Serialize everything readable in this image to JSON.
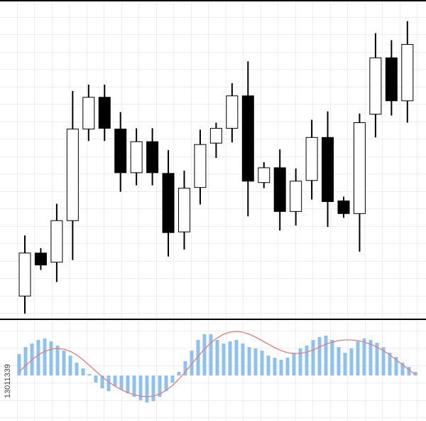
{
  "watermark": "13011339",
  "chart_data": [
    {
      "type": "candlestick",
      "ylim": [
        0,
        450
      ],
      "grid": true,
      "up_color": "#ffffff",
      "down_color": "#000000",
      "open": [
        32,
        93,
        80,
        139,
        269,
        314,
        269,
        207,
        251,
        206,
        123,
        186,
        249,
        270,
        316,
        193,
        214,
        152,
        196,
        257,
        167,
        149,
        290,
        370,
        309
      ],
      "close": [
        93,
        76,
        139,
        269,
        314,
        270,
        207,
        251,
        207,
        122,
        185,
        247,
        270,
        316,
        195,
        214,
        152,
        195,
        257,
        166,
        149,
        278,
        370,
        309,
        389
      ],
      "high": [
        118,
        100,
        163,
        323,
        332,
        332,
        293,
        270,
        270,
        239,
        210,
        268,
        278,
        334,
        365,
        222,
        240,
        213,
        282,
        294,
        173,
        291,
        405,
        395,
        422
      ],
      "low": [
        7,
        69,
        52,
        83,
        252,
        252,
        180,
        189,
        189,
        88,
        98,
        162,
        228,
        250,
        145,
        185,
        125,
        132,
        169,
        130,
        143,
        95,
        257,
        288,
        278
      ]
    },
    {
      "type": "bar",
      "ylim": [
        -64,
        78
      ],
      "grid": true,
      "series": [
        {
          "color": "#8ec1ec",
          "values": [
            30,
            40,
            45,
            50,
            52,
            48,
            42,
            35,
            28,
            18,
            10,
            2,
            -10,
            -18,
            -22,
            -15,
            -20,
            -25,
            -30,
            -35,
            -38,
            -36,
            -30,
            -22,
            -10,
            5,
            20,
            35,
            50,
            58,
            58,
            50,
            45,
            48,
            50,
            45,
            40,
            38,
            35,
            28,
            25,
            22,
            25,
            32,
            38,
            42,
            50,
            54,
            56,
            50,
            40,
            32,
            38,
            48,
            52,
            50,
            46,
            40,
            32,
            26,
            18,
            12,
            5
          ]
        },
        {
          "type": "line",
          "color": "#e87c7c",
          "values": [
            5,
            14,
            22,
            29,
            34,
            37,
            38,
            37,
            34,
            29,
            22,
            14,
            6,
            -2,
            -9,
            -15,
            -20,
            -24,
            -27,
            -29,
            -30,
            -29,
            -26,
            -21,
            -14,
            -5,
            5,
            16,
            27,
            37,
            46,
            53,
            58,
            61,
            62,
            61,
            58,
            54,
            49,
            44,
            39,
            35,
            32,
            31,
            31,
            33,
            36,
            40,
            44,
            47,
            49,
            50,
            50,
            49,
            47,
            44,
            40,
            35,
            29,
            22,
            15,
            8,
            1
          ]
        }
      ]
    }
  ]
}
